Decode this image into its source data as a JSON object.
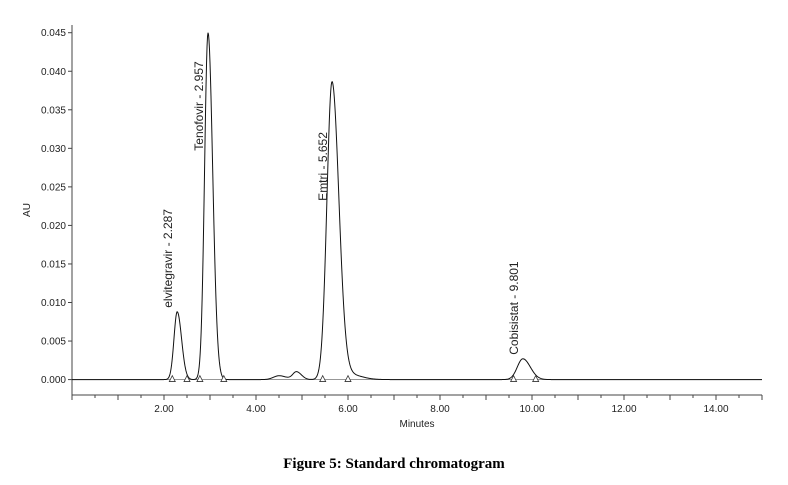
{
  "figure_caption": "Figure 5: Standard chromatogram",
  "chart_data": {
    "type": "line",
    "title": "",
    "xlabel": "Minutes",
    "ylabel": "AU",
    "xlim": [
      0,
      15.0
    ],
    "ylim": [
      -0.002,
      0.046
    ],
    "grid": false,
    "x_ticks": [
      2.0,
      4.0,
      6.0,
      8.0,
      10.0,
      12.0,
      14.0
    ],
    "x_tick_labels": [
      "2.00",
      "4.00",
      "6.00",
      "8.00",
      "10.00",
      "12.00",
      "14.00"
    ],
    "y_ticks": [
      0.0,
      0.005,
      0.01,
      0.015,
      0.02,
      0.025,
      0.03,
      0.035,
      0.04,
      0.045
    ],
    "y_tick_labels": [
      "0.000",
      "0.005",
      "0.010",
      "0.015",
      "0.020",
      "0.025",
      "0.030",
      "0.035",
      "0.040",
      "0.045"
    ],
    "peaks": [
      {
        "label": "elvitegravir - 2.287",
        "retention_time": 2.287,
        "height": 0.0088,
        "width": 0.07,
        "start": 2.18,
        "end": 2.5
      },
      {
        "label": "Tenofovir - 2.957",
        "retention_time": 2.957,
        "height": 0.045,
        "width": 0.075,
        "start": 2.78,
        "end": 3.3
      },
      {
        "label": "Emtri - 5.652",
        "retention_time": 5.652,
        "height": 0.0385,
        "width": 0.11,
        "start": 5.45,
        "end": 6.0
      },
      {
        "label": "Cobisistat - 9.801",
        "retention_time": 9.801,
        "height": 0.0027,
        "width": 0.12,
        "start": 9.6,
        "end": 10.08
      }
    ],
    "minor_peaks": [
      {
        "retention_time": 4.5,
        "height": 0.0005,
        "width": 0.12
      },
      {
        "retention_time": 4.88,
        "height": 0.001,
        "width": 0.08
      },
      {
        "retention_time": 6.0,
        "height": 0.0007,
        "width": 0.2
      }
    ],
    "line_color": "#111111",
    "baseline_color": "#888888"
  }
}
